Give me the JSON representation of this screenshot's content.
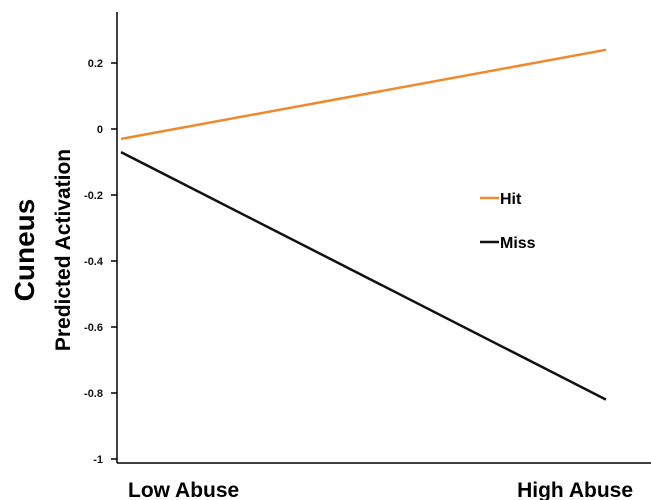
{
  "chart_data": {
    "type": "line",
    "title": "",
    "ylabel_main": "Cuneus",
    "ylabel": "Predicted Activation",
    "xlabel": "",
    "categories": [
      "Low Abuse",
      "High Abuse"
    ],
    "ylim": [
      -1,
      0.35
    ],
    "yticks": [
      0.2,
      0,
      -0.2,
      -0.4,
      -0.6,
      -0.8,
      -1
    ],
    "ytick_labels": [
      "0.2",
      "0",
      "-0.2",
      "-0.4",
      "-0.6",
      "-0.8",
      "-1"
    ],
    "grid": false,
    "legend_position": "center-right",
    "series": [
      {
        "name": "Hit",
        "color": "#F0892E",
        "values": [
          -0.03,
          0.24
        ]
      },
      {
        "name": "Miss",
        "color": "#111111",
        "values": [
          -0.07,
          -0.82
        ]
      }
    ]
  }
}
